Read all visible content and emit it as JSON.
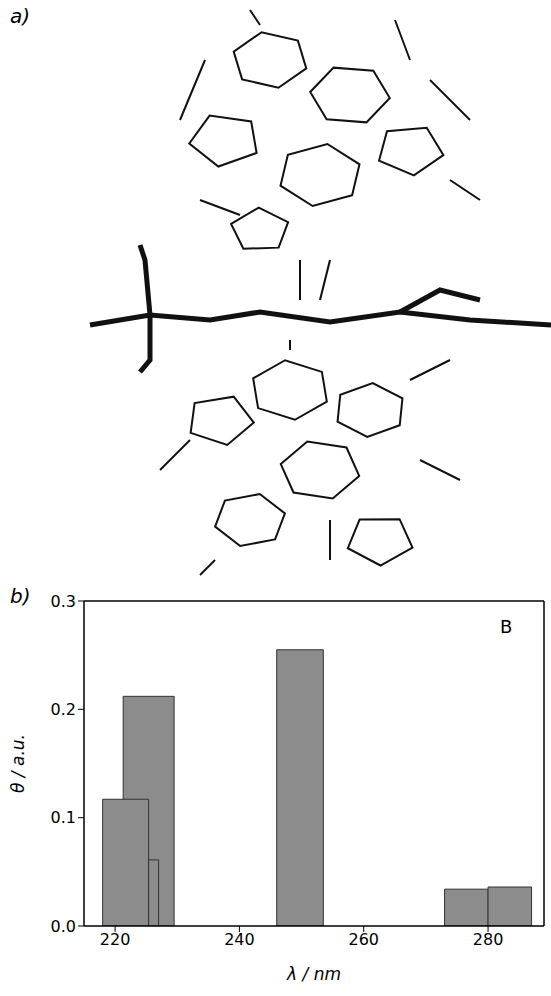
{
  "figure_labels": [
    "a)",
    "b)"
  ],
  "chart_data": {
    "type": "bar",
    "annotation": "B",
    "x_label": "λ / nm",
    "y_label": "θ / a.u.",
    "x_start": [
      221.3,
      218,
      225.4,
      246,
      273,
      280
    ],
    "x_end": [
      229.5,
      225.4,
      227,
      253.5,
      280,
      287
    ],
    "values": [
      0.212,
      0.117,
      0.061,
      0.255,
      0.034,
      0.036
    ],
    "color": "#8c8c8c",
    "xlim": [
      215,
      289
    ],
    "xticks": [
      220,
      240,
      260,
      280
    ],
    "ylim": [
      0,
      0.3
    ],
    "yticks": [
      {
        "value": 0,
        "label": "0.0"
      },
      {
        "value": 0.1,
        "label": "0.1"
      },
      {
        "value": 0.2,
        "label": "0.2"
      },
      {
        "value": 0.3,
        "label": "0.3"
      }
    ],
    "grid": false
  }
}
